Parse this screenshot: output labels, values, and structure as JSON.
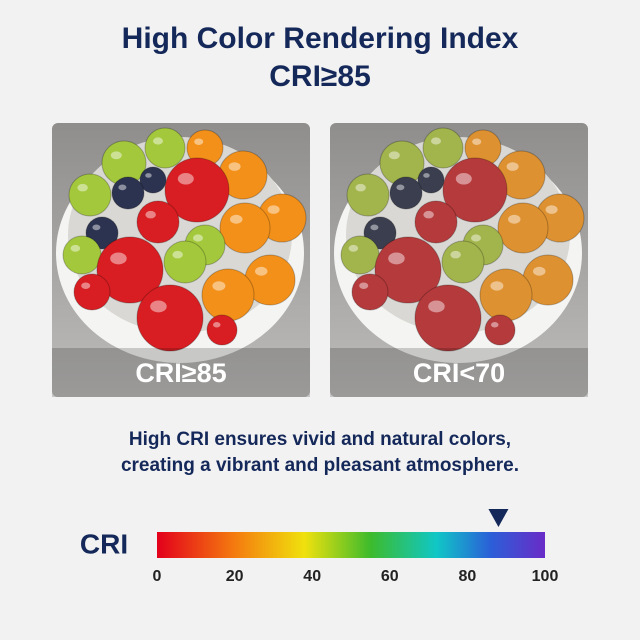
{
  "header": {
    "title_lines": [
      "High Color Rendering Index",
      "CRI≥85"
    ]
  },
  "panels": [
    {
      "label": "CRI≥85"
    },
    {
      "label": "CRI<70"
    }
  ],
  "caption_lines": [
    "High CRI ensures vivid and natural colors,",
    "creating a vibrant and pleasant atmosphere."
  ],
  "scale": {
    "label": "CRI",
    "min": 0,
    "max": 100,
    "ticks": [
      0,
      20,
      40,
      60,
      80,
      100
    ],
    "marker": 88
  }
}
